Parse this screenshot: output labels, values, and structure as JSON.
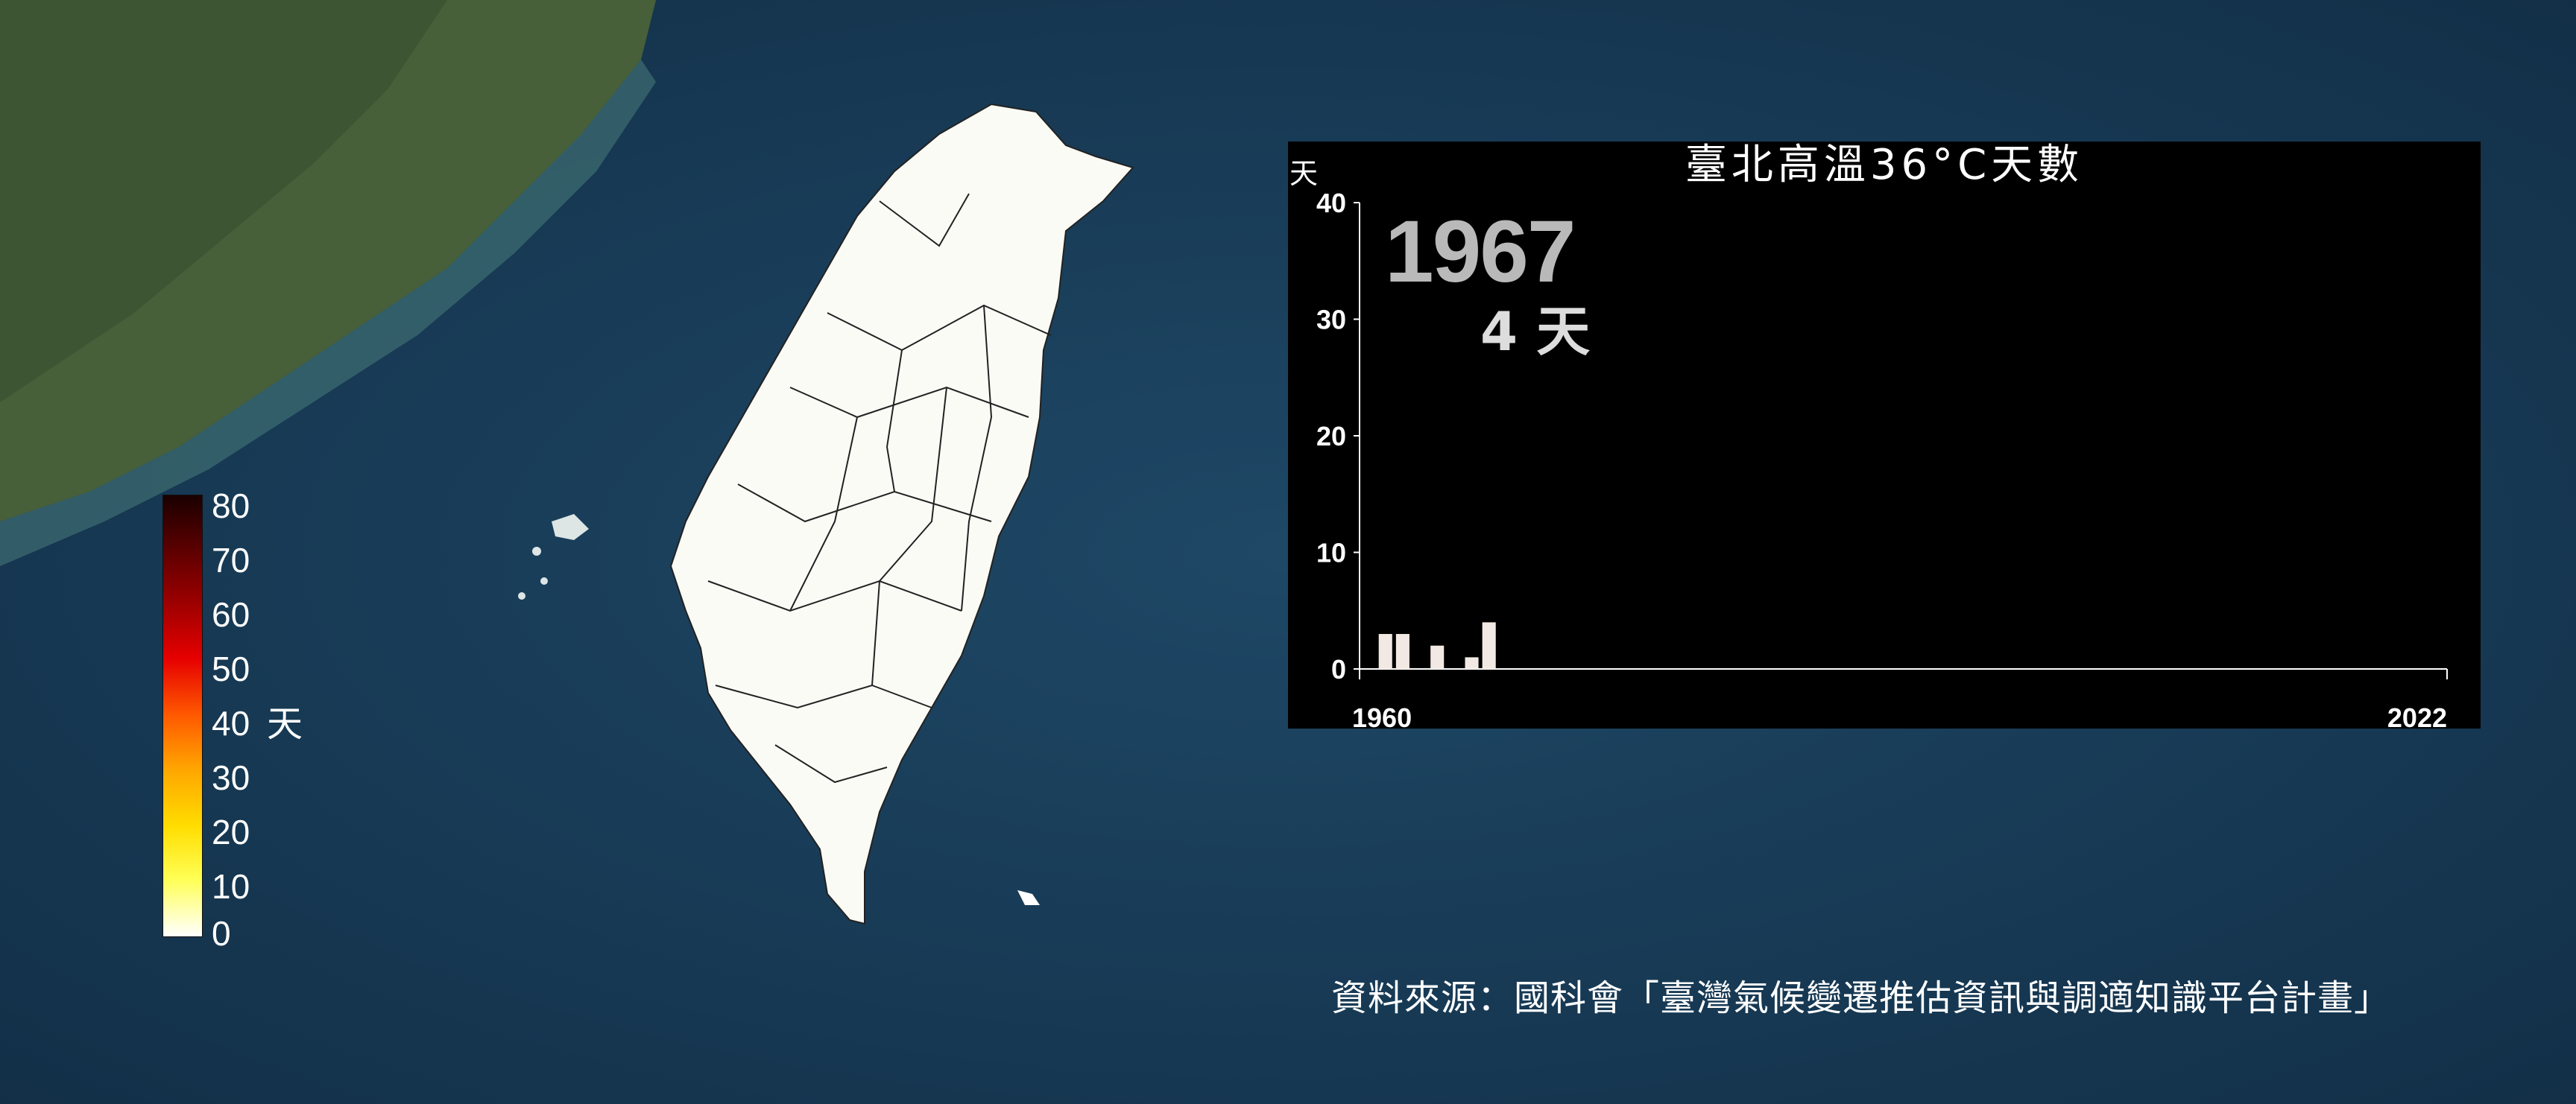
{
  "legend": {
    "ticks": [
      "80",
      "70",
      "60",
      "50",
      "40",
      "30",
      "20",
      "10",
      "0"
    ],
    "unit": "天"
  },
  "colors": {
    "panel_bg": "#000000",
    "bar": "#f3e9e4",
    "axis": "#ffffff"
  },
  "source": "資料來源：國科會「臺灣氣候變遷推估資訊與調適知識平台計畫」",
  "chart_data": {
    "type": "bar",
    "title": "臺北高溫36°C天數",
    "ylabel": "天",
    "ylim": [
      0,
      40
    ],
    "yticks": [
      "0",
      "10",
      "20",
      "30",
      "40"
    ],
    "xlim": [
      1960,
      2022
    ],
    "xtick_labels": [
      "1960",
      "2022"
    ],
    "x": [
      1961,
      1962,
      1963,
      1964,
      1965,
      1966,
      1967
    ],
    "values": [
      3,
      3,
      0,
      2,
      0,
      1,
      4
    ],
    "current_year": "1967",
    "current_value": "4 天",
    "grid": false
  }
}
